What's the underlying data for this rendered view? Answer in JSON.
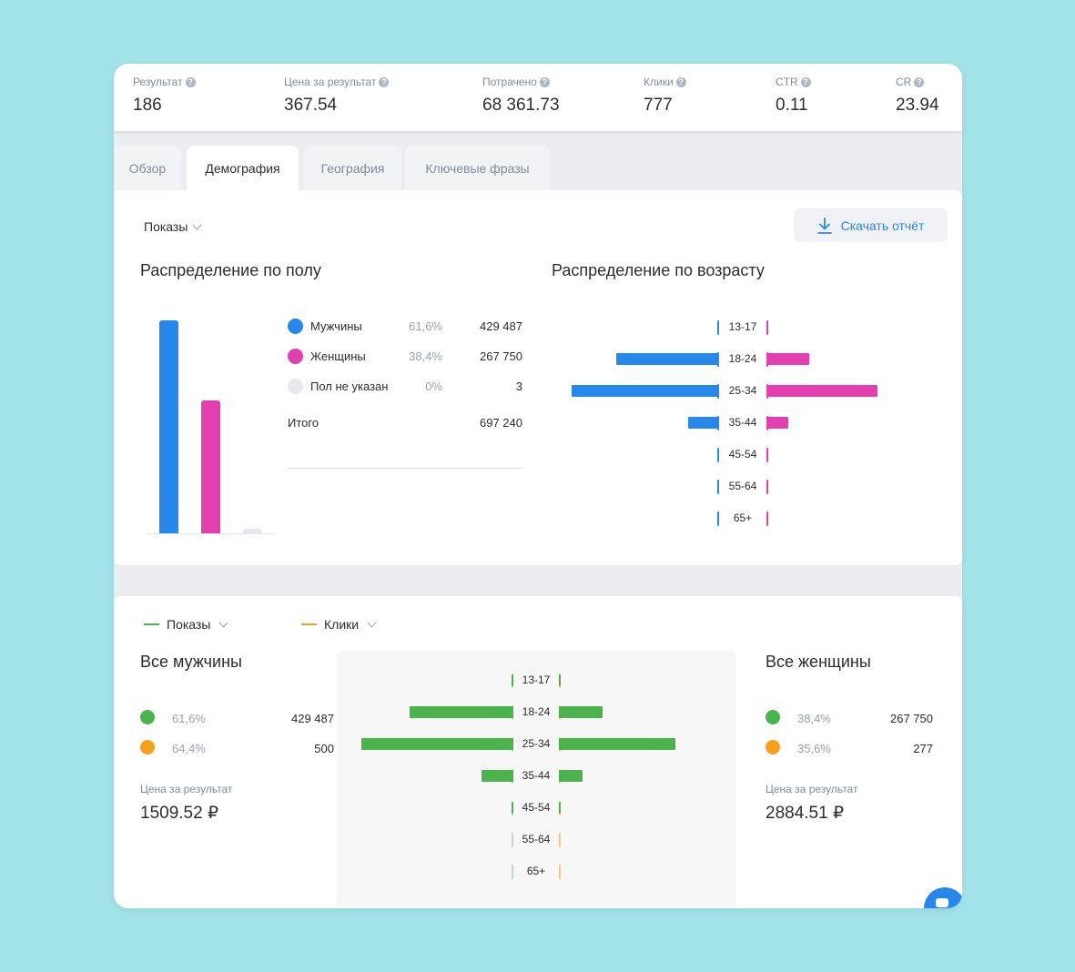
{
  "metrics": [
    {
      "label": "Результат",
      "value": "186"
    },
    {
      "label": "Цена за результат",
      "value": "367.54"
    },
    {
      "label": "Потрачено",
      "value": "68 361.73"
    },
    {
      "label": "Клики",
      "value": "777"
    },
    {
      "label": "CTR",
      "value": "0.11"
    },
    {
      "label": "CR",
      "value": "23.94"
    }
  ],
  "tabs": [
    {
      "label": "Обзор"
    },
    {
      "label": "Демография"
    },
    {
      "label": "География"
    },
    {
      "label": "Ключевые фразы"
    }
  ],
  "toolbar": {
    "metric_select": "Показы",
    "download_label": "Скачать отчёт"
  },
  "gender": {
    "title": "Распределение по полу",
    "rows": [
      {
        "name": "Мужчины",
        "pct": "61,6%",
        "count": "429 487",
        "color": "#2688eb"
      },
      {
        "name": "Женщины",
        "pct": "38,4%",
        "count": "267 750",
        "color": "#e33fb0"
      },
      {
        "name": "Пол не указан",
        "pct": "0%",
        "count": "3",
        "color": "#e7e8ec"
      }
    ],
    "total_label": "Итого",
    "total_value": "697 240"
  },
  "age": {
    "title": "Распределение по возрасту"
  },
  "bottom": {
    "legend_left": "Показы",
    "legend_right": "Клики",
    "men": {
      "title": "Все мужчины",
      "shows_pct": "61,6%",
      "shows_count": "429 487",
      "clicks_pct": "64,4%",
      "clicks_count": "500",
      "price_label": "Цена за результат",
      "price_value": "1509.52 ₽"
    },
    "women": {
      "title": "Все женщины",
      "shows_pct": "38,4%",
      "shows_count": "267 750",
      "clicks_pct": "35,6%",
      "clicks_count": "277",
      "price_label": "Цена за результат",
      "price_value": "2884.51 ₽"
    }
  },
  "colors": {
    "men": "#2688eb",
    "women": "#e33fb0",
    "unknown": "#e7e8ec",
    "shows": "#4bb34b",
    "clicks": "#f8a01c"
  },
  "chart_data": [
    {
      "type": "bar",
      "categories": [
        "Мужчины",
        "Женщины",
        "Пол не указан"
      ],
      "values": [
        429487,
        267750,
        3
      ]
    },
    {
      "type": "bar",
      "categories": [
        "13-17",
        "18-24",
        "25-34",
        "35-44",
        "45-54",
        "55-64",
        "65+"
      ],
      "series": [
        {
          "name": "Мужчины",
          "values": [
            0.5,
            28,
            40,
            8.5,
            0.5,
            0.3,
            0.2
          ]
        },
        {
          "name": "Женщины",
          "values": [
            0.5,
            11.5,
            30,
            6,
            0.5,
            0.3,
            0.2
          ]
        }
      ]
    },
    {
      "type": "bar",
      "categories": [
        "13-17",
        "18-24",
        "25-34",
        "35-44",
        "45-54",
        "55-64",
        "65+"
      ],
      "series": [
        {
          "name": "Мужчины",
          "values": [
            0.5,
            26,
            38,
            8,
            0.5,
            0.3,
            0.2
          ]
        },
        {
          "name": "Женщины",
          "values": [
            0.5,
            11,
            29,
            6,
            0.5,
            0.3,
            0.2
          ]
        }
      ]
    }
  ]
}
